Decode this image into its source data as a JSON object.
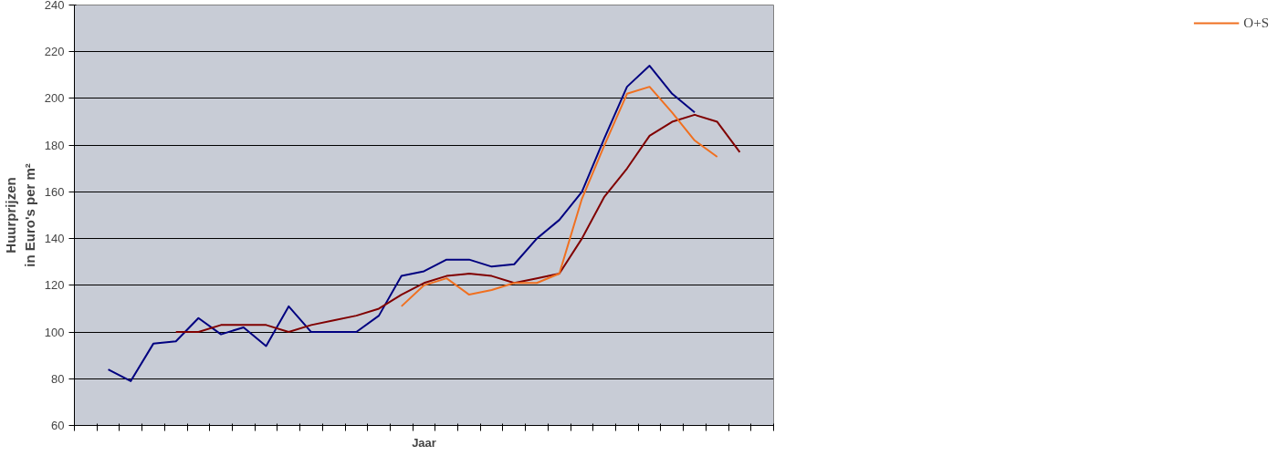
{
  "chart_data": {
    "type": "line",
    "xlabel": "Jaar",
    "ylabel": "Huurprijzen\nin Euro's per m²",
    "categories": [
      null,
      null,
      null,
      null,
      null,
      null,
      null,
      null,
      null,
      null,
      null,
      null,
      null,
      null,
      null,
      null,
      null,
      null,
      null,
      null,
      null,
      null,
      null,
      null,
      null,
      null,
      null,
      null,
      null,
      null,
      null
    ],
    "series": [
      {
        "color": "#000080",
        "values": [
          null,
          84,
          79,
          95,
          96,
          106,
          99,
          102,
          94,
          111,
          100,
          100,
          100,
          107,
          124,
          126,
          131,
          131,
          128,
          129,
          140,
          148,
          160,
          183,
          205,
          214,
          202,
          194,
          null,
          null,
          null
        ]
      },
      {
        "color": "#800000",
        "values": [
          null,
          null,
          null,
          null,
          100,
          100,
          103,
          103,
          103,
          100,
          103,
          105,
          107,
          110,
          116,
          121,
          124,
          125,
          124,
          121,
          123,
          125,
          140,
          158,
          170,
          184,
          190,
          193,
          190,
          177,
          null
        ]
      },
      {
        "name": "O+S",
        "color": "#f07020",
        "values": [
          null,
          null,
          null,
          null,
          null,
          null,
          null,
          null,
          null,
          null,
          null,
          null,
          null,
          null,
          111,
          120,
          123,
          116,
          118,
          121,
          121,
          125,
          157,
          180,
          202,
          205,
          194,
          182,
          175,
          null,
          null
        ]
      }
    ],
    "ylim": [
      60,
      240
    ],
    "yticks": [
      60,
      80,
      100,
      120,
      140,
      160,
      180,
      200,
      220,
      240
    ],
    "grid": "y",
    "legend": "right"
  }
}
